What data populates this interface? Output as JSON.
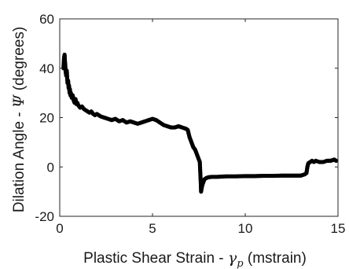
{
  "chart_data": {
    "type": "scatter",
    "title": "",
    "xlabel": {
      "prefix": "Plastic Shear Strain - ",
      "symbol": "γ",
      "subscript": "p",
      "suffix": " (mstrain)"
    },
    "ylabel": {
      "prefix": "Dilation Angle - ",
      "symbol": "Ψ",
      "suffix": " (degrees)"
    },
    "xlim": [
      0,
      15
    ],
    "ylim": [
      -20,
      60
    ],
    "xticks": [
      "0",
      "5",
      "10",
      "15"
    ],
    "yticks": [
      "-20",
      "0",
      "20",
      "40",
      "60"
    ],
    "grid": false,
    "marker_color": "#000000",
    "series": [
      {
        "x": [
          0.2,
          0.23,
          0.26,
          0.28,
          0.3,
          0.32,
          0.35,
          0.38,
          0.4,
          0.42,
          0.45,
          0.48,
          0.5,
          0.53,
          0.55,
          0.58,
          0.6,
          0.65,
          0.7,
          0.75,
          0.8,
          0.85,
          0.9,
          0.95,
          1.0,
          1.1,
          1.2,
          1.3,
          1.4,
          1.5,
          1.6,
          1.7,
          1.8,
          1.9,
          2.0,
          2.2,
          2.4,
          2.6,
          2.8,
          3.0,
          3.2,
          3.4,
          3.6,
          3.8,
          4.0,
          4.2,
          4.4,
          4.6,
          4.8,
          5.0,
          5.2,
          5.4,
          5.6,
          5.8,
          6.0,
          6.2,
          6.4,
          6.6,
          6.8,
          6.9,
          7.0,
          7.1,
          7.2,
          7.3,
          7.4,
          7.5,
          7.55,
          7.6,
          7.62,
          7.65,
          7.7,
          7.75,
          7.8,
          7.9,
          8.0,
          8.2,
          8.5,
          9.0,
          9.5,
          10.0,
          10.5,
          11.0,
          11.5,
          12.0,
          12.5,
          13.0,
          13.2,
          13.3,
          13.35,
          13.4,
          13.5,
          13.6,
          13.7,
          13.8,
          14.0,
          14.2,
          14.4,
          14.6,
          14.8,
          14.9
        ],
        "y": [
          40.0,
          44.0,
          45.5,
          43.0,
          41.0,
          38.5,
          37.0,
          39.0,
          36.0,
          34.0,
          35.0,
          32.0,
          33.0,
          30.0,
          31.5,
          29.0,
          30.0,
          28.0,
          29.0,
          27.0,
          26.0,
          27.5,
          25.5,
          26.0,
          25.0,
          24.0,
          24.5,
          23.5,
          23.0,
          22.5,
          22.0,
          22.5,
          21.5,
          21.0,
          21.5,
          20.5,
          20.0,
          19.5,
          19.0,
          19.5,
          18.5,
          19.0,
          18.0,
          18.5,
          18.0,
          17.5,
          18.0,
          18.5,
          19.0,
          19.5,
          19.0,
          18.0,
          17.0,
          16.5,
          16.0,
          16.0,
          16.5,
          16.0,
          15.5,
          15.0,
          12.0,
          10.0,
          8.0,
          7.0,
          5.0,
          3.0,
          2.0,
          -6.0,
          -10.0,
          -8.5,
          -7.0,
          -6.0,
          -5.0,
          -4.5,
          -4.2,
          -4.0,
          -4.0,
          -3.8,
          -3.8,
          -3.7,
          -3.7,
          -3.6,
          -3.6,
          -3.5,
          -3.5,
          -3.5,
          -3.0,
          -2.5,
          0.0,
          1.5,
          2.0,
          2.5,
          2.0,
          2.5,
          2.0,
          2.0,
          2.5,
          2.5,
          3.0,
          2.5
        ]
      }
    ]
  }
}
